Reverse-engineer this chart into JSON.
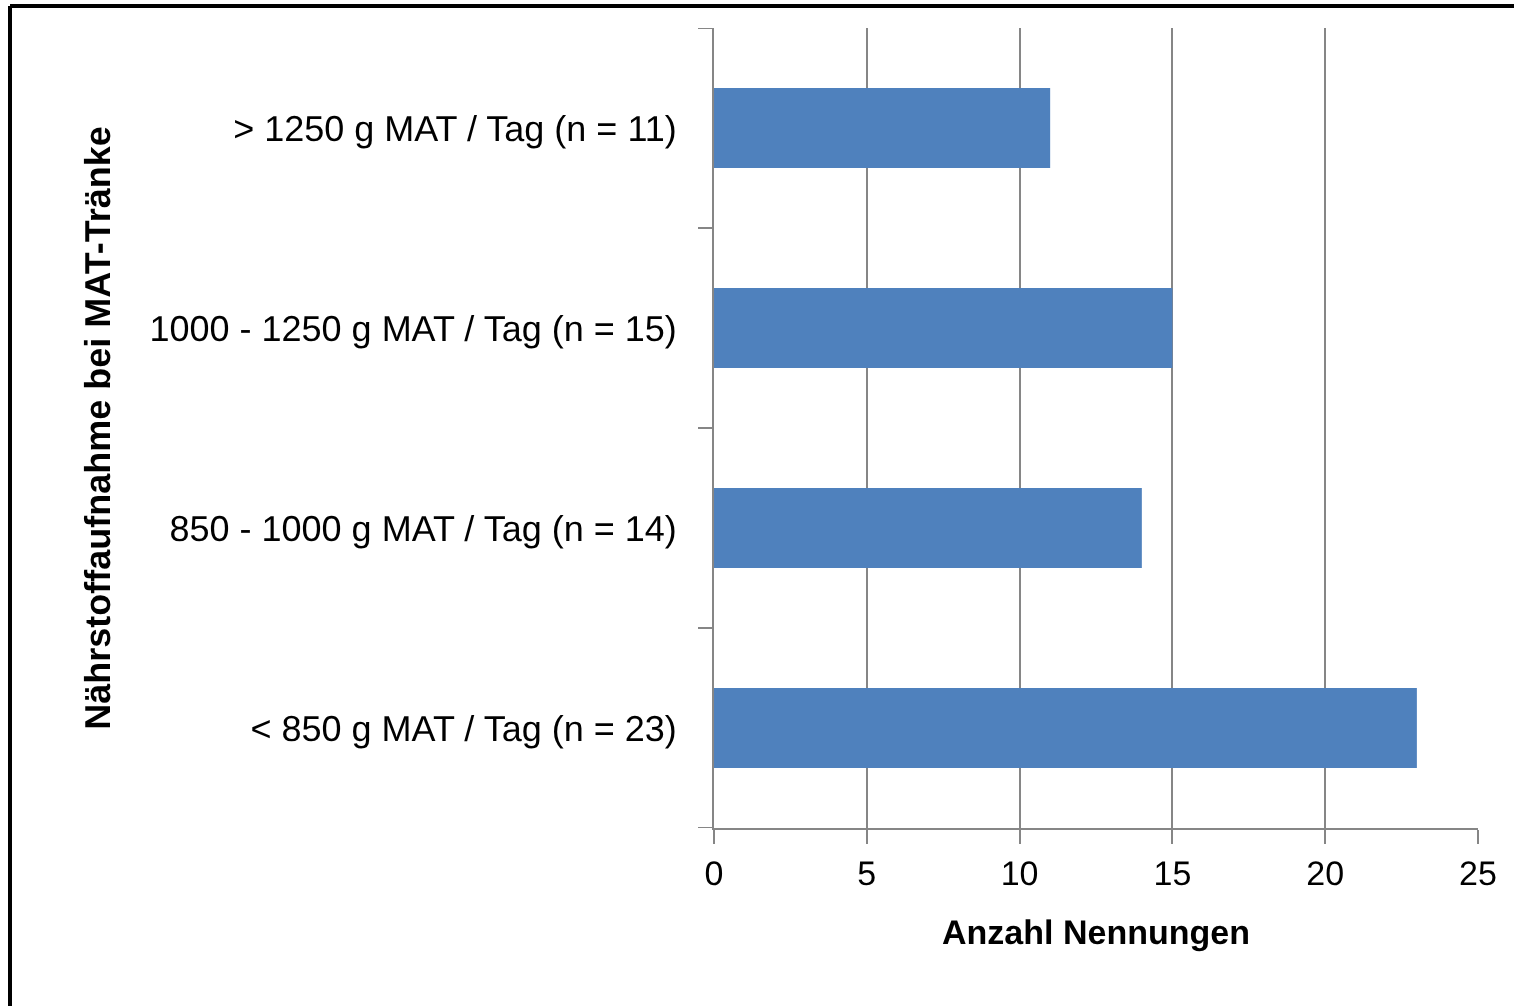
{
  "chart_data": {
    "type": "bar",
    "orientation": "horizontal",
    "categories": [
      "> 1250 g MAT / Tag (n = 11)",
      "1000 - 1250 g MAT / Tag (n = 15)",
      "850 - 1000 g MAT / Tag (n = 14)",
      "< 850 g MAT / Tag (n = 23)"
    ],
    "values": [
      11,
      15,
      14,
      23
    ],
    "color": "#4f81bd",
    "xlabel": "Anzahl Nennungen",
    "ylabel": "Nährstoffaufnahme bei MAT-Tränke",
    "xlim": [
      0,
      25
    ],
    "xticks": [
      0,
      5,
      10,
      15,
      20,
      25
    ],
    "grid": "x"
  }
}
